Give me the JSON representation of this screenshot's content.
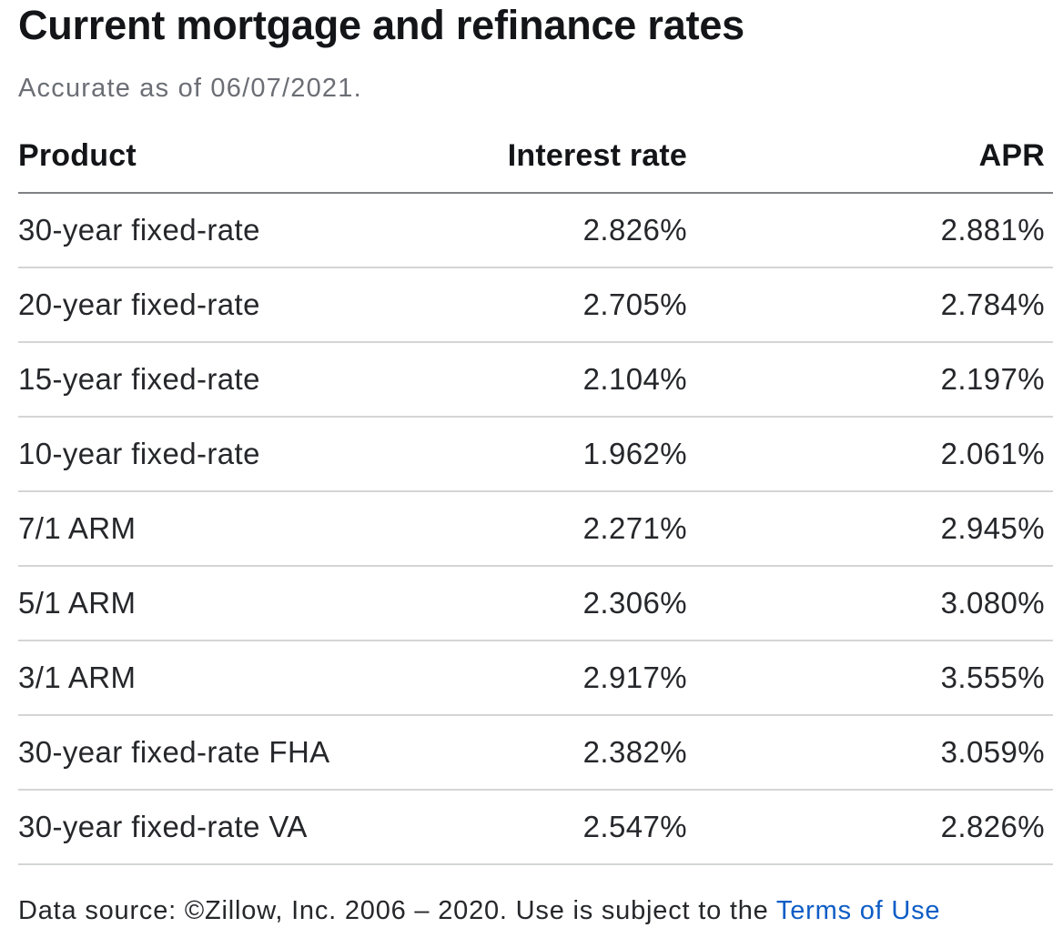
{
  "page": {
    "title": "Current mortgage and refinance rates",
    "subtitle": "Accurate as of 06/07/2021."
  },
  "table": {
    "headers": {
      "product": "Product",
      "rate": "Interest rate",
      "apr": "APR"
    },
    "rows": [
      {
        "product": "30-year fixed-rate",
        "rate": "2.826%",
        "apr": "2.881%"
      },
      {
        "product": "20-year fixed-rate",
        "rate": "2.705%",
        "apr": "2.784%"
      },
      {
        "product": "15-year fixed-rate",
        "rate": "2.104%",
        "apr": "2.197%"
      },
      {
        "product": "10-year fixed-rate",
        "rate": "1.962%",
        "apr": "2.061%"
      },
      {
        "product": "7/1 ARM",
        "rate": "2.271%",
        "apr": "2.945%"
      },
      {
        "product": "5/1 ARM",
        "rate": "2.306%",
        "apr": "3.080%"
      },
      {
        "product": "3/1 ARM",
        "rate": "2.917%",
        "apr": "3.555%"
      },
      {
        "product": "30-year fixed-rate FHA",
        "rate": "2.382%",
        "apr": "3.059%"
      },
      {
        "product": "30-year fixed-rate VA",
        "rate": "2.547%",
        "apr": "2.826%"
      }
    ]
  },
  "footer": {
    "text": "Data source: ©Zillow, Inc. 2006 – 2020. Use is subject to the ",
    "link_label": "Terms of Use"
  },
  "colors": {
    "link_blue": "#0e5dc6",
    "subtitle_gray": "#6b6e74",
    "header_rule_gray": "#808184",
    "row_rule_gray": "#d4d5d6",
    "heading_black": "#141518",
    "body_text": "#26272b"
  },
  "chart_data": {
    "type": "table",
    "title": "Current mortgage and refinance rates",
    "subtitle": "Accurate as of 06/07/2021.",
    "columns": [
      "Product",
      "Interest rate",
      "APR"
    ],
    "rows": [
      [
        "30-year fixed-rate",
        "2.826%",
        "2.881%"
      ],
      [
        "20-year fixed-rate",
        "2.705%",
        "2.784%"
      ],
      [
        "15-year fixed-rate",
        "2.104%",
        "2.197%"
      ],
      [
        "10-year fixed-rate",
        "1.962%",
        "2.061%"
      ],
      [
        "7/1 ARM",
        "2.271%",
        "2.945%"
      ],
      [
        "5/1 ARM",
        "2.306%",
        "3.080%"
      ],
      [
        "3/1 ARM",
        "2.917%",
        "3.555%"
      ],
      [
        "30-year fixed-rate FHA",
        "2.382%",
        "3.059%"
      ],
      [
        "30-year fixed-rate VA",
        "2.547%",
        "2.826%"
      ]
    ],
    "interest_rate_values_pct": [
      2.826,
      2.705,
      2.104,
      1.962,
      2.271,
      2.306,
      2.917,
      2.382,
      2.547
    ],
    "apr_values_pct": [
      2.881,
      2.784,
      2.197,
      2.061,
      2.945,
      3.08,
      3.555,
      3.059,
      2.826
    ],
    "source_note": "Data source: ©Zillow, Inc. 2006 – 2020. Use is subject to the Terms of Use",
    "legend_position": "none",
    "grid": "horizontal-rules-only"
  }
}
